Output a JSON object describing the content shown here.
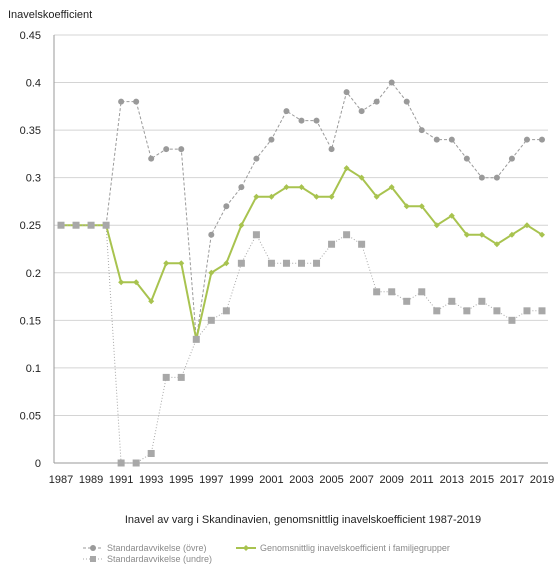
{
  "chart_data": {
    "type": "line",
    "ylabel": "Inavelskoefficient",
    "xlabel": "Inavel av varg i Skandinavien, genomsnittlig inavelskoefficient 1987-2019",
    "ylim": [
      0,
      0.45
    ],
    "yticks": [
      "0",
      "0.05",
      "0.1",
      "0.15",
      "0.2",
      "0.25",
      "0.3",
      "0.35",
      "0.4",
      "0.45"
    ],
    "xticks": [
      "1987",
      "1989",
      "1991",
      "1993",
      "1995",
      "1997",
      "1999",
      "2001",
      "2003",
      "2005",
      "2007",
      "2009",
      "2011",
      "2013",
      "2015",
      "2017",
      "2019"
    ],
    "x": [
      1987,
      1988,
      1989,
      1990,
      1991,
      1992,
      1993,
      1994,
      1995,
      1996,
      1997,
      1998,
      1999,
      2000,
      2001,
      2002,
      2003,
      2004,
      2005,
      2006,
      2007,
      2008,
      2009,
      2010,
      2011,
      2012,
      2013,
      2014,
      2015,
      2016,
      2017,
      2018,
      2019
    ],
    "grid": "horizontal",
    "legend_position": "bottom",
    "series": [
      {
        "name": "Standardavvikelse (övre)",
        "color": "#9a9a9a",
        "style": "dashed",
        "marker": "circle",
        "values": [
          0.25,
          0.25,
          0.25,
          0.25,
          0.38,
          0.38,
          0.32,
          0.33,
          0.33,
          0.13,
          0.24,
          0.27,
          0.29,
          0.32,
          0.34,
          0.37,
          0.36,
          0.36,
          0.33,
          0.39,
          0.37,
          0.38,
          0.4,
          0.38,
          0.35,
          0.34,
          0.34,
          0.32,
          0.3,
          0.3,
          0.32,
          0.34,
          0.34
        ]
      },
      {
        "name": "Genomsnittlig inavelskoefficient i familjegrupper",
        "color": "#a8c34f",
        "style": "solid",
        "marker": "diamond",
        "values": [
          0.25,
          0.25,
          0.25,
          0.25,
          0.19,
          0.19,
          0.17,
          0.21,
          0.21,
          0.13,
          0.2,
          0.21,
          0.25,
          0.28,
          0.28,
          0.29,
          0.29,
          0.28,
          0.28,
          0.31,
          0.3,
          0.28,
          0.29,
          0.27,
          0.27,
          0.25,
          0.26,
          0.24,
          0.24,
          0.23,
          0.24,
          0.25,
          0.24
        ]
      },
      {
        "name": "Standardavvikelse (undre)",
        "color": "#a8a8a8",
        "style": "dotted",
        "marker": "square",
        "values": [
          0.25,
          0.25,
          0.25,
          0.25,
          0.0,
          0.0,
          0.01,
          0.09,
          0.09,
          0.13,
          0.15,
          0.16,
          0.21,
          0.24,
          0.21,
          0.21,
          0.21,
          0.21,
          0.23,
          0.24,
          0.23,
          0.18,
          0.18,
          0.17,
          0.18,
          0.16,
          0.17,
          0.16,
          0.17,
          0.16,
          0.15,
          0.16,
          0.16
        ]
      }
    ]
  }
}
